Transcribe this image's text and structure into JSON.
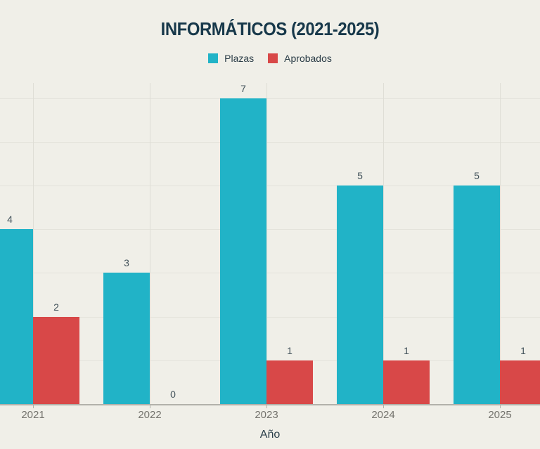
{
  "title": "INFORMÁTICOS (2021-2025)",
  "x_axis": {
    "title": "Año",
    "tick_labels": [
      "2021",
      "2022",
      "2023",
      "2024",
      "2025"
    ]
  },
  "legend": {
    "items": [
      {
        "label": "Plazas",
        "color": "#21b3c7"
      },
      {
        "label": "Aprobados",
        "color": "#d84848"
      }
    ]
  },
  "chart_data": {
    "type": "bar",
    "title": "INFORMÁTICOS (2021-2025)",
    "categories": [
      "2021",
      "2022",
      "2023",
      "2024",
      "2025"
    ],
    "series": [
      {
        "name": "Plazas",
        "color": "#21b3c7",
        "values": [
          4,
          3,
          7,
          5,
          5
        ]
      },
      {
        "name": "Aprobados",
        "color": "#d84848",
        "values": [
          2,
          0,
          1,
          1,
          1
        ]
      }
    ],
    "xlabel": "Año",
    "ylabel": "",
    "ylim": [
      0,
      7.35
    ],
    "grid": true,
    "legend_position": "top",
    "value_labels": true
  },
  "colors": {
    "background": "#f0efe8",
    "title": "#17384a",
    "legend_text": "#2a3c46",
    "grid_h": "#e4e3db",
    "grid_v": "#dfded6",
    "axis_line": "#b2b1aa",
    "value_label": "#42525a",
    "tick_label": "#75746e",
    "x_axis_title": "#2c404b"
  }
}
